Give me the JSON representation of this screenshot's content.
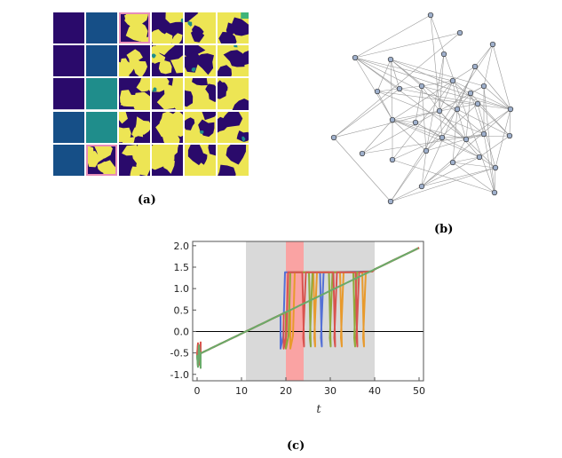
{
  "panels": {
    "a_label": "(a)",
    "b_label": "(b)",
    "c_label": "(c)"
  },
  "colors": {
    "dark_purple": "#2a0a6b",
    "blue": "#164f87",
    "teal": "#1f8d8b",
    "green": "#3fb47a",
    "yellow": "#ede554",
    "highlight_pink": "#e68db8",
    "grey_band": "#d9d9d9",
    "red_band": "#ff9999"
  },
  "chart_data": {
    "type": "line",
    "xlabel": "t",
    "ylabel": "",
    "xlim": [
      -1,
      51
    ],
    "ylim": [
      -1.15,
      2.1
    ],
    "xticks": [
      "0",
      "10",
      "20",
      "30",
      "40",
      "50"
    ],
    "yticks": [
      "-1.0",
      "-0.5",
      "0.0",
      "0.5",
      "1.0",
      "1.5",
      "2.0"
    ],
    "grey_band": [
      11,
      40
    ],
    "red_band": [
      20,
      24
    ],
    "hline": 0.0,
    "grid": "off",
    "series": [
      {
        "color": "#5470d6",
        "jump_t": [
          18.8,
          28.5
        ]
      },
      {
        "color": "#e89a2c",
        "jump_t": [
          21.0,
          27.0,
          33.0,
          38.0
        ]
      },
      {
        "color": "#8faa3a",
        "jump_t": [
          20.0,
          26.0,
          30.5,
          36.0
        ]
      },
      {
        "color": "#d9534f",
        "jump_t": [
          19.5,
          24.5,
          31.5,
          36.5
        ]
      },
      {
        "color": "#6aab6a",
        "jump_t": []
      }
    ],
    "diagonal": {
      "start": [
        0,
        -0.55
      ],
      "end": [
        50,
        1.95
      ]
    }
  }
}
